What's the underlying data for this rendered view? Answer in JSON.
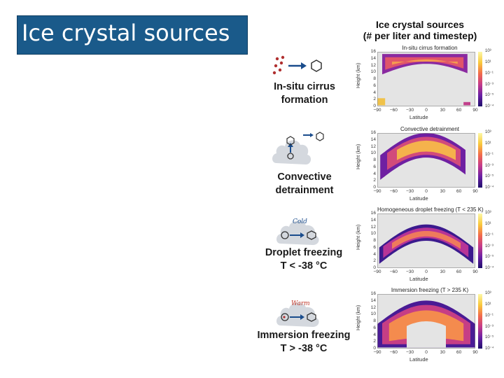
{
  "slide": {
    "title": "Ice crystal sources",
    "heading_line1": "Ice crystal sources",
    "heading_line2": "(# per liter and timestep)"
  },
  "rows": [
    {
      "label_line1": "In-situ cirrus",
      "label_line2": "formation",
      "icon": "particles-to-hexagon-icon",
      "panel_title": "In-situ cirrus formation"
    },
    {
      "label_line1": "Convective",
      "label_line2": "detrainment",
      "icon": "cloud-updraft-icon",
      "panel_title": "Convective detrainment"
    },
    {
      "label_line1": "Droplet freezing",
      "label_line2": "T < -38 °C",
      "icon": "cold-cloud-icon",
      "cloud_word": "Cold",
      "panel_title": "Homogeneous droplet freezing (T < 235 K)"
    },
    {
      "label_line1": "Immersion freezing",
      "label_line2": "T > -38 °C",
      "icon": "warm-cloud-icon",
      "cloud_word": "Warm",
      "panel_title": "Immersion freezing (T > 235 K)"
    }
  ],
  "axes": {
    "ylabel": "Height (km)",
    "xlabel": "Latitude",
    "yticks": [
      "16",
      "14",
      "12",
      "10",
      "8",
      "6",
      "4",
      "2",
      "0"
    ],
    "xticks": [
      "−90",
      "−60",
      "−30",
      "0",
      "30",
      "60",
      "90"
    ],
    "colorbar_ticks": [
      "10³",
      "10¹",
      "10⁻¹",
      "10⁻³",
      "10⁻⁵",
      "10⁻⁴"
    ]
  },
  "colors": {
    "title_bg": "#1a5a8a",
    "arrow": "#1a4c8c",
    "particles": "#b03030"
  }
}
